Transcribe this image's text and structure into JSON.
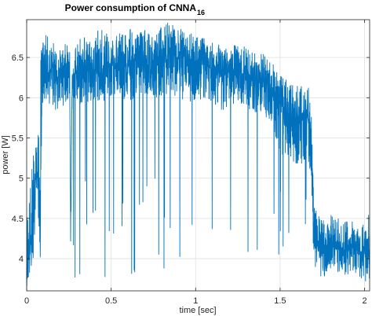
{
  "chart_data": {
    "type": "line",
    "title": "Power consumption of CNNA",
    "title_subscript": "16",
    "xlabel": "time [sec]",
    "ylabel": "power [W]",
    "xlim": [
      0,
      2.03
    ],
    "ylim": [
      3.6,
      6.97
    ],
    "xticks": [
      0,
      0.5,
      1,
      1.5,
      2
    ],
    "xtick_labels": [
      "0",
      "0.5",
      "1",
      "1.5",
      "2"
    ],
    "yticks": [
      4,
      4.5,
      5,
      5.5,
      6,
      6.5
    ],
    "ytick_labels": [
      "4",
      "4.5",
      "5",
      "5.5",
      "6",
      "6.5"
    ],
    "grid": true,
    "legend": "none",
    "line_color": "#0072BD",
    "series": [
      {
        "x": [
          0.0,
          0.02,
          0.04,
          0.055,
          0.065,
          0.08,
          0.09,
          0.1,
          0.12,
          0.14,
          0.16,
          0.18,
          0.2,
          0.22,
          0.24,
          0.255,
          0.26,
          0.27,
          0.28,
          0.29,
          0.3,
          0.35,
          0.4,
          0.45,
          0.5,
          0.55,
          0.6,
          0.65,
          0.7,
          0.75,
          0.8,
          0.85,
          0.9,
          0.95,
          1.0,
          1.05,
          1.1,
          1.15,
          1.2,
          1.25,
          1.3,
          1.35,
          1.4,
          1.45,
          1.5,
          1.55,
          1.6,
          1.65,
          1.68,
          1.7,
          1.75,
          1.8,
          1.85,
          1.9,
          1.95,
          2.0,
          2.03
        ],
        "y": [
          3.95,
          4.15,
          4.3,
          5.2,
          5.0,
          4.2,
          6.3,
          6.45,
          6.35,
          6.3,
          6.4,
          6.25,
          6.3,
          6.35,
          6.4,
          6.3,
          4.3,
          6.2,
          6.3,
          6.35,
          6.3,
          6.4,
          6.35,
          6.3,
          6.4,
          6.45,
          6.4,
          6.45,
          6.5,
          6.45,
          6.5,
          6.55,
          6.5,
          6.45,
          6.45,
          6.4,
          6.35,
          6.35,
          6.3,
          6.3,
          6.3,
          6.25,
          6.2,
          6.1,
          5.9,
          5.8,
          5.75,
          5.8,
          5.7,
          4.2,
          4.1,
          4.15,
          4.1,
          4.1,
          4.15,
          4.05,
          4.1
        ],
        "envelope_max": [
          4.6,
          4.9,
          5.4,
          5.6,
          5.3,
          6.6,
          6.7,
          6.75,
          6.8,
          6.65,
          6.7,
          6.6,
          6.6,
          6.65,
          6.7,
          6.6,
          4.6,
          6.5,
          6.6,
          6.8,
          6.7,
          6.8,
          6.75,
          6.95,
          6.7,
          6.85,
          6.9,
          6.8,
          6.85,
          6.75,
          6.9,
          6.95,
          6.9,
          6.8,
          6.8,
          6.75,
          6.7,
          6.65,
          6.6,
          6.7,
          6.65,
          6.55,
          6.55,
          6.45,
          6.3,
          6.2,
          6.15,
          6.2,
          6.15,
          4.65,
          4.5,
          4.55,
          4.5,
          4.5,
          4.45,
          4.45,
          4.6
        ],
        "envelope_min": [
          3.65,
          3.75,
          3.95,
          4.8,
          4.75,
          3.9,
          5.9,
          5.9,
          5.95,
          5.9,
          5.85,
          5.8,
          5.9,
          5.9,
          5.95,
          5.9,
          4.1,
          5.85,
          5.9,
          5.95,
          5.9,
          5.9,
          5.95,
          5.95,
          6.0,
          6.0,
          5.95,
          6.0,
          6.05,
          6.0,
          6.0,
          6.05,
          6.0,
          5.95,
          5.95,
          5.95,
          5.9,
          5.85,
          5.85,
          5.9,
          5.85,
          5.8,
          5.75,
          5.7,
          5.3,
          5.15,
          5.1,
          5.2,
          5.1,
          3.9,
          3.75,
          3.8,
          3.75,
          3.8,
          3.8,
          3.7,
          3.75
        ]
      }
    ]
  }
}
